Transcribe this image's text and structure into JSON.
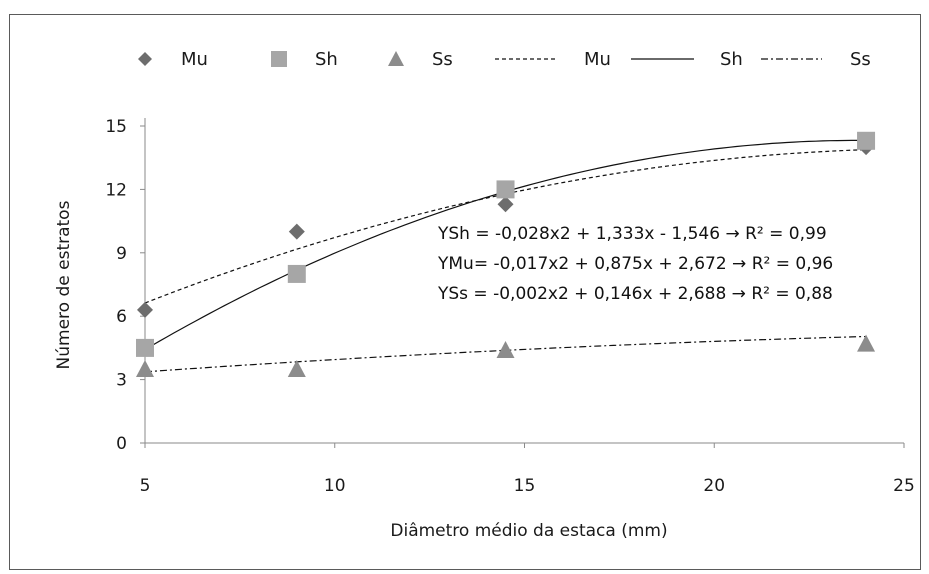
{
  "chart_data": {
    "type": "scatter",
    "xlabel": "Diâmetro médio da  estaca (mm)",
    "ylabel": "Número de estratos",
    "xlim": [
      5,
      25
    ],
    "ylim": [
      0,
      15
    ],
    "xticks": [
      5,
      10,
      15,
      20,
      25
    ],
    "yticks": [
      0,
      3,
      6,
      9,
      12,
      15
    ],
    "grid": false,
    "legend_position": "top",
    "series": [
      {
        "name": "Mu",
        "marker": "diamond",
        "color": "#6d6d6d",
        "x": [
          5,
          9,
          14.5,
          24
        ],
        "y": [
          6.3,
          10.0,
          11.3,
          14.0
        ]
      },
      {
        "name": "Sh",
        "marker": "square",
        "color": "#a6a6a6",
        "x": [
          5,
          9,
          14.5,
          24
        ],
        "y": [
          4.5,
          8.0,
          12.0,
          14.3
        ]
      },
      {
        "name": "Ss",
        "marker": "triangle",
        "color": "#8c8c8c",
        "x": [
          5,
          9,
          14.5,
          24
        ],
        "y": [
          3.5,
          3.5,
          4.4,
          4.7
        ]
      }
    ],
    "trendlines": [
      {
        "name": "Mu",
        "style": "dashed",
        "coefficients": [
          -0.017,
          0.875,
          2.672
        ]
      },
      {
        "name": "Sh",
        "style": "solid",
        "coefficients": [
          -0.028,
          1.333,
          -1.546
        ]
      },
      {
        "name": "Ss",
        "style": "dash-dot",
        "coefficients": [
          -0.002,
          0.146,
          2.688
        ]
      }
    ],
    "annotations": [
      "YSh = -0,028x2 + 1,333x - 1,546 → R² = 0,99",
      "YMu= -0,017x2 + 0,875x + 2,672 → R² = 0,96",
      "YSs = -0,002x2 + 0,146x + 2,688 →  R² = 0,88"
    ]
  }
}
